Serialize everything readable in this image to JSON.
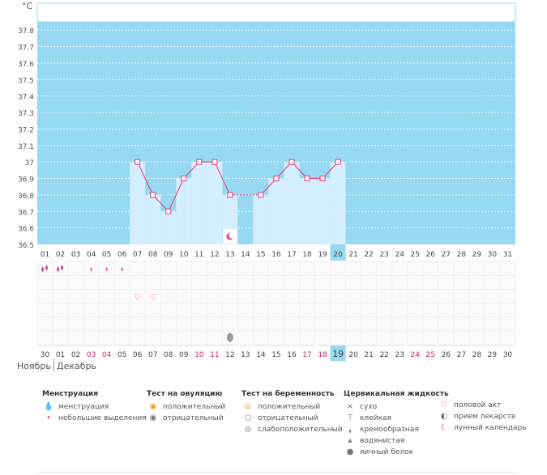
{
  "chart_data": {
    "type": "line",
    "y_unit": "°C",
    "ylim": [
      36.5,
      37.85
    ],
    "y_ticks": [
      "36.5",
      "36.6",
      "36.7",
      "36.8",
      "36.9",
      "37",
      "37.1",
      "37.2",
      "37.3",
      "37.4",
      "37.5",
      "37.6",
      "37.7",
      "37.8"
    ],
    "cycle_days": [
      "01",
      "02",
      "03",
      "04",
      "05",
      "06",
      "07",
      "08",
      "09",
      "10",
      "11",
      "12",
      "13",
      "14",
      "15",
      "16",
      "17",
      "18",
      "19",
      "20",
      "21",
      "22",
      "23",
      "24",
      "25",
      "26",
      "27",
      "28",
      "29",
      "30",
      "31"
    ],
    "highlight_cycle_day": "20",
    "temperatures": [
      null,
      null,
      null,
      null,
      null,
      null,
      37.0,
      36.8,
      36.7,
      36.9,
      37.0,
      37.0,
      36.8,
      null,
      36.8,
      36.9,
      37.0,
      36.9,
      36.9,
      37.0,
      null,
      null,
      null,
      null,
      null,
      null,
      null,
      null,
      null,
      null,
      null
    ],
    "dashed_segment_after_day": "13",
    "calendar_days": [
      "30",
      "01",
      "02",
      "03",
      "04",
      "05",
      "06",
      "07",
      "08",
      "09",
      "10",
      "11",
      "12",
      "13",
      "14",
      "15",
      "16",
      "17",
      "18",
      "19",
      "20",
      "21",
      "22",
      "23",
      "24",
      "25",
      "26",
      "27",
      "28",
      "29",
      "30"
    ],
    "calendar_red_days": [
      "03",
      "04",
      "10",
      "11",
      "17",
      "18",
      "24",
      "25"
    ],
    "highlight_calendar_day": "19",
    "month_prev": "Ноябрь",
    "month_current": "Декабрь",
    "markers": {
      "menstruation_heavy_days": [
        "01",
        "02"
      ],
      "menstruation_light_days": [
        "04",
        "05",
        "06"
      ],
      "intercourse_days": [
        "07",
        "08"
      ],
      "lunar_calendar_days": [
        "13"
      ],
      "cervical_egg_white_days": [
        "13"
      ]
    },
    "colors": {
      "plot_background": "#97d8f3",
      "temp_bar": "#d3efff",
      "line": "#e53a72",
      "highlight": "#97d8f3",
      "red_day": "#d0225a",
      "pink_icon": "#e8407a"
    }
  },
  "legend": {
    "menstruation": {
      "title": "Менструация",
      "items": [
        {
          "icon": "blood-drops-icon",
          "label": "менструация"
        },
        {
          "icon": "blood-drop-small-icon",
          "label": "небольшие выделения"
        }
      ]
    },
    "ovulation_test": {
      "title": "Тест на овуляцию",
      "items": [
        {
          "icon": "ovulation-positive-icon",
          "label": "положительный"
        },
        {
          "icon": "ovulation-negative-icon",
          "label": "отрицательный"
        }
      ]
    },
    "pregnancy_test": {
      "title": "Тест на беременность",
      "items": [
        {
          "icon": "pregnancy-positive-icon",
          "label": "положительный"
        },
        {
          "icon": "pregnancy-negative-icon",
          "label": "отрицательный"
        },
        {
          "icon": "pregnancy-weak-icon",
          "label": "слабоположительный"
        }
      ]
    },
    "cervical_fluid": {
      "title": "Цервикальная жидкость",
      "items": [
        {
          "icon": "dry-icon",
          "label": "сухо"
        },
        {
          "icon": "sticky-icon",
          "label": "клейкая"
        },
        {
          "icon": "creamy-icon",
          "label": "кремообразная"
        },
        {
          "icon": "watery-icon",
          "label": "водянистая"
        },
        {
          "icon": "egg-white-icon",
          "label": "яичный белок"
        }
      ]
    },
    "other": {
      "items": [
        {
          "icon": "heart-icon",
          "label": "половой акт"
        },
        {
          "icon": "pill-icon",
          "label": "прием лекарств"
        },
        {
          "icon": "moon-icon",
          "label": "лунный календарь"
        }
      ]
    }
  }
}
